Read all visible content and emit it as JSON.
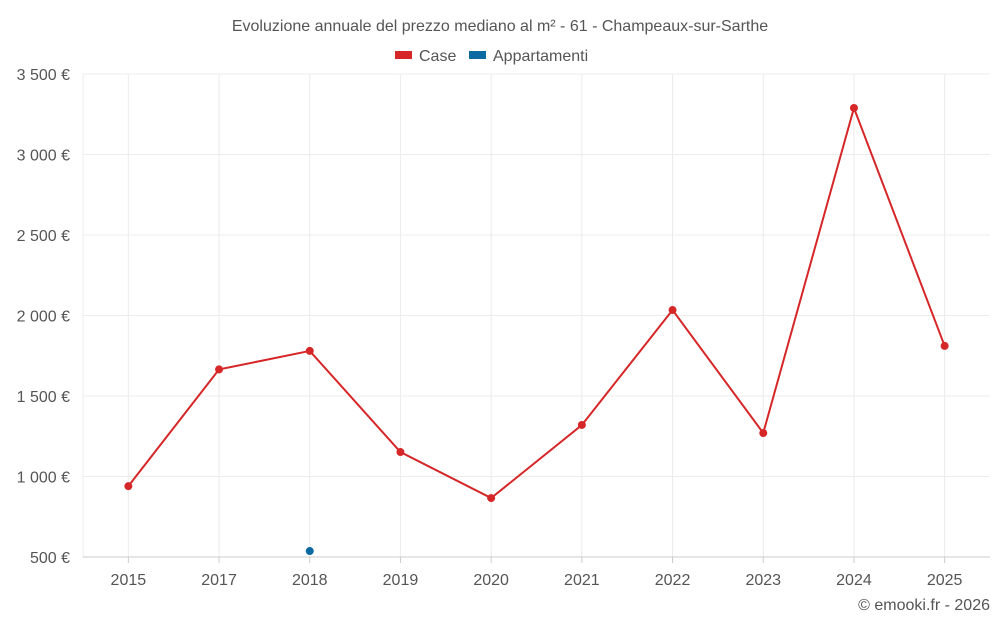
{
  "chart_data": {
    "type": "line",
    "title": "Evoluzione annuale del prezzo mediano al m² - 61 - Champeaux-sur-Sarthe",
    "categories": [
      "2015",
      "2017",
      "2018",
      "2019",
      "2020",
      "2021",
      "2022",
      "2023",
      "2024",
      "2025"
    ],
    "series": [
      {
        "name": "Case",
        "color": "#d62728",
        "values": [
          940,
          1665,
          1780,
          1152,
          866,
          1320,
          2034,
          1270,
          3289,
          1811
        ]
      },
      {
        "name": "Appartamenti",
        "color": "#0b6aa2",
        "values": [
          null,
          null,
          537,
          null,
          null,
          null,
          null,
          null,
          null,
          null
        ]
      }
    ],
    "yticks": [
      "500 €",
      "1 000 €",
      "1 500 €",
      "2 000 €",
      "2 500 €",
      "3 000 €",
      "3 500 €"
    ],
    "ylim": [
      500,
      3500
    ],
    "grid": true,
    "legend": "top-center",
    "xlabel": "",
    "ylabel": ""
  },
  "credit": "© emooki.fr - 2026"
}
